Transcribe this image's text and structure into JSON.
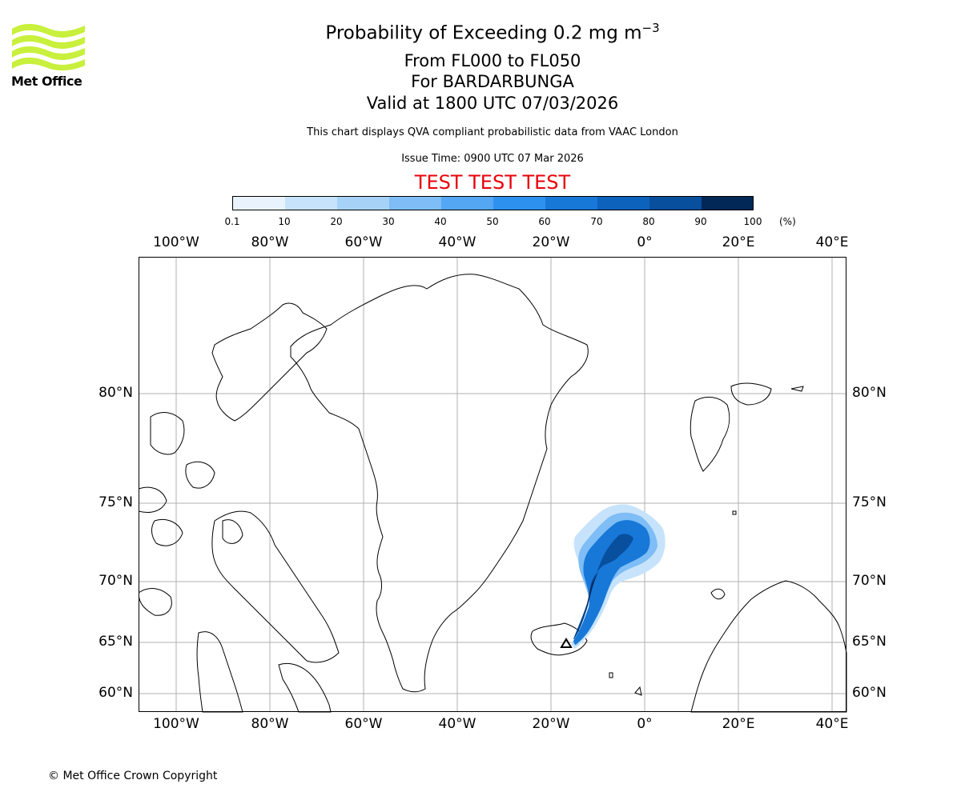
{
  "logo": {
    "text": "Met Office",
    "icon": "met-office-wave-logo",
    "color": "#c8f03c"
  },
  "title": {
    "main_prefix": "Probability of Exceeding 0.2 mg m",
    "main_superscript": "−3",
    "line2": "From FL000 to FL050",
    "line3": "For BARDARBUNGA",
    "line4": "Valid at 1800 UTC 07/03/2026"
  },
  "subtitle": "This chart displays QVA compliant probabilistic data from VAAC London",
  "issue_time": "Issue Time: 0900 UTC 07 Mar 2026",
  "test_banner": {
    "text": "TEST TEST TEST",
    "color": "#e8000a"
  },
  "colorbar": {
    "ticks": [
      "0.1",
      "10",
      "20",
      "30",
      "40",
      "50",
      "60",
      "70",
      "80",
      "90",
      "100"
    ],
    "unit": "(%)",
    "colors": [
      "#e8f3fe",
      "#c7e3fb",
      "#a6d2f8",
      "#7ebdf5",
      "#54a7f2",
      "#2d91ef",
      "#1778d8",
      "#0d62bc",
      "#084f9e",
      "#05397a",
      "#022858"
    ]
  },
  "map": {
    "lon_labels": [
      "100°W",
      "80°W",
      "60°W",
      "40°W",
      "20°W",
      "0°",
      "20°E",
      "40°E"
    ],
    "lat_labels": [
      "80°N",
      "75°N",
      "70°N",
      "65°N",
      "60°N"
    ],
    "grid": true,
    "ash_plume_source": "Bardarbunga, Iceland"
  },
  "copyright": "© Met Office Crown Copyright"
}
